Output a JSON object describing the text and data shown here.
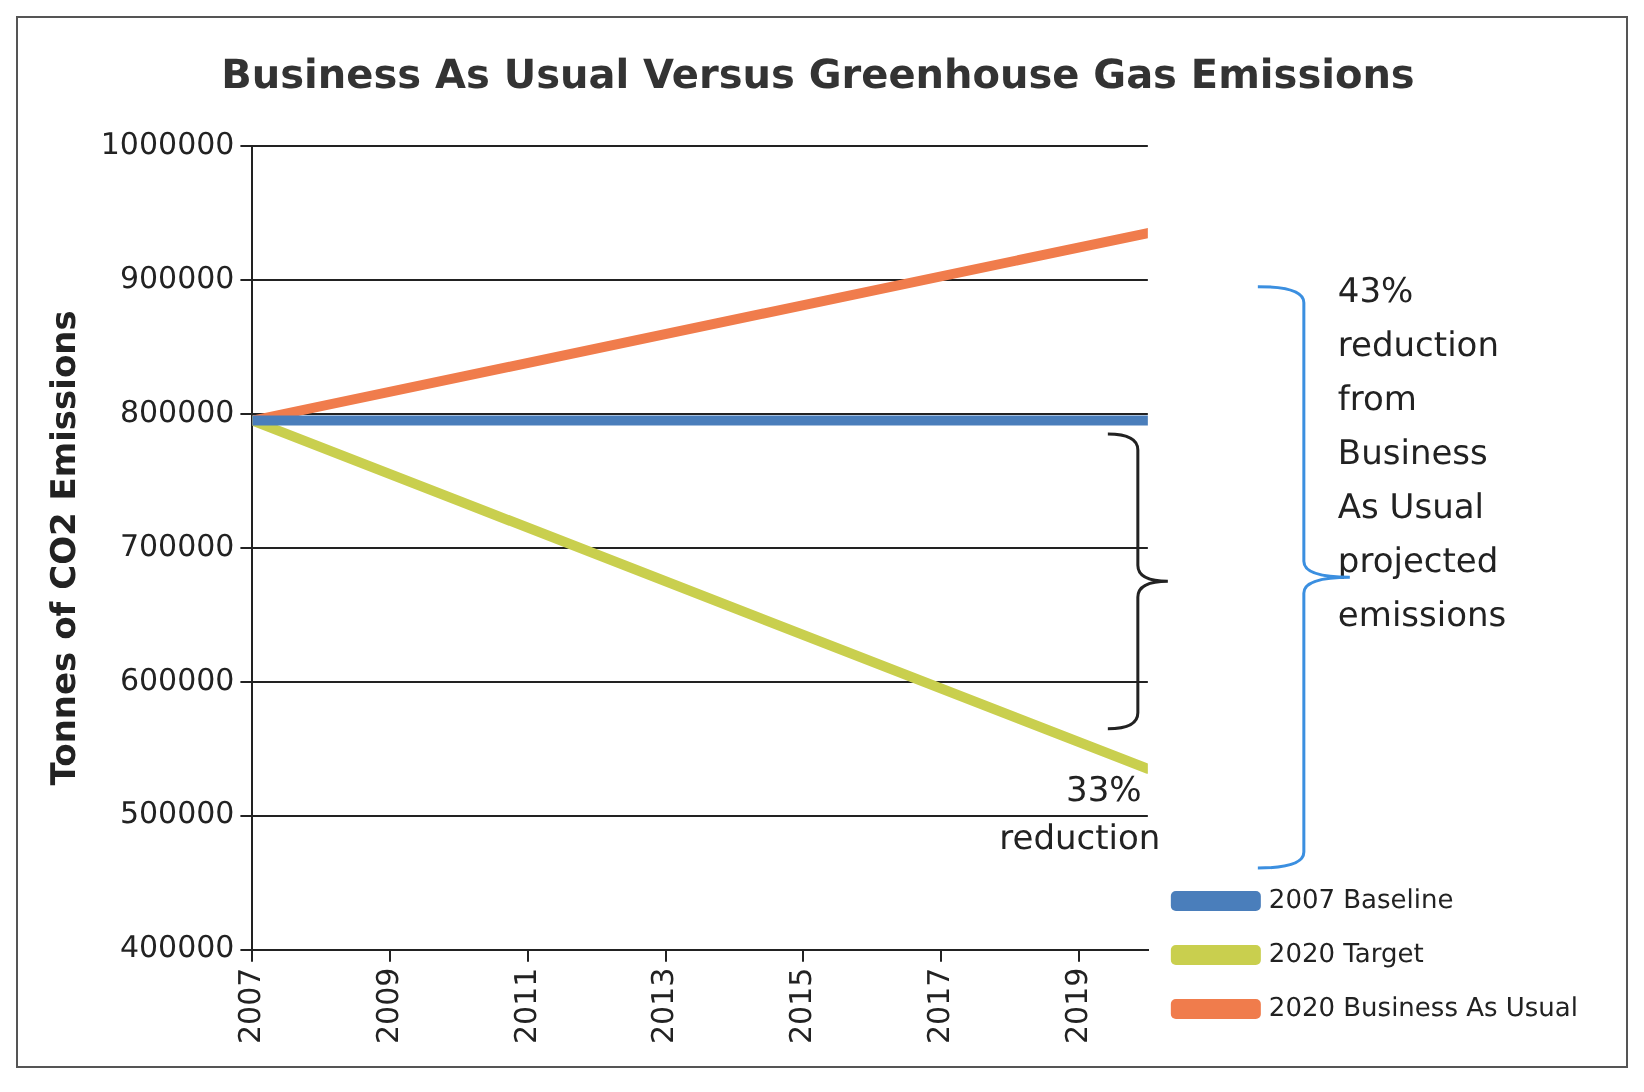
{
  "chart_data": {
    "type": "line",
    "title": "Business As Usual Versus Greenhouse Gas Emissions",
    "ylabel": "Tonnes of CO2 Emissions",
    "x": [
      2007,
      2020
    ],
    "series": [
      {
        "name": "2007 Baseline",
        "color": "#4a7ebb",
        "values": [
          795000,
          795000
        ]
      },
      {
        "name": "2020 Target",
        "color": "#c9cf4e",
        "values": [
          795000,
          535000
        ]
      },
      {
        "name": "2020 Business As Usual",
        "color": "#f07c4c",
        "values": [
          795000,
          935000
        ]
      }
    ],
    "xlim": [
      2007,
      2020
    ],
    "xticks": [
      2007,
      2009,
      2011,
      2013,
      2015,
      2017,
      2019
    ],
    "ylim": [
      400000,
      1000000
    ],
    "yticks": [
      400000,
      500000,
      600000,
      700000,
      800000,
      900000,
      1000000
    ],
    "annotations": [
      "33% reduction",
      "43% reduction from Business As Usual projected emissions"
    ],
    "grid": "y",
    "legend": "bottom right",
    "marker": "none",
    "line_style": "solid"
  }
}
